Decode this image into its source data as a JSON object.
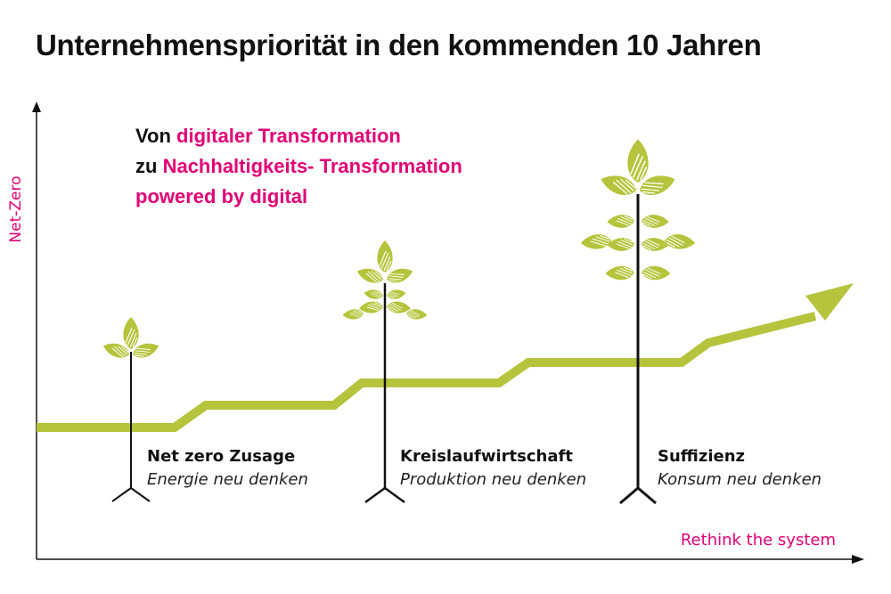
{
  "title": "Unternehmenspriorität in den kommenden 10 Jahren",
  "headline": {
    "line1": {
      "dark": "Von",
      "accent": "digitaler Transformation"
    },
    "line2": {
      "dark": "zu",
      "accent": "Nachhaltigkeits- Transformation"
    },
    "line3": {
      "accent": "powered by digital"
    }
  },
  "axes": {
    "y_label": "Net-Zero",
    "x_label": "Rethink the system"
  },
  "stages": [
    {
      "title": "Net zero Zusage",
      "subtitle": "Energie neu denken"
    },
    {
      "title": "Kreislaufwirtschaft",
      "subtitle": "Produktion neu denken"
    },
    {
      "title": "Suffizienz",
      "subtitle": "Konsum neu denken"
    }
  ],
  "colors": {
    "accent": "#e20074",
    "leaf": "#b5c43c",
    "stem": "#111111",
    "axis": "#111111"
  }
}
